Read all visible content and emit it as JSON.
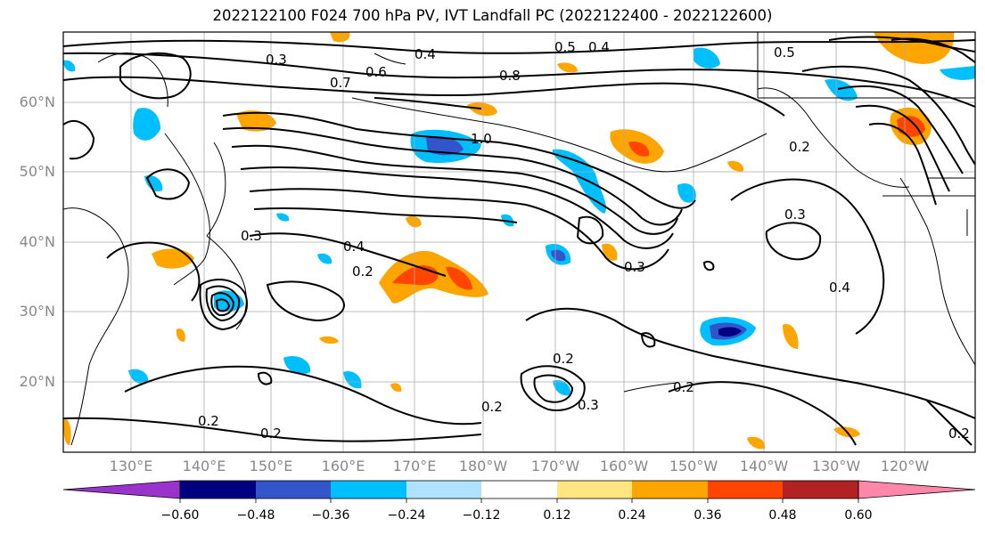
{
  "title": "2022122100 F024 700 hPa PV, IVT Landfall PC (2022122400 - 2022122600)",
  "latitude_labels": [
    "60°N",
    "50°N",
    "40°N",
    "30°N",
    "20°N"
  ],
  "longitude_labels": [
    "130°E",
    "140°E",
    "150°E",
    "160°E",
    "170°E",
    "180°W",
    "170°W",
    "160°W",
    "150°W",
    "140°W",
    "130°W",
    "120°W"
  ],
  "contour_labels": [
    "1.0",
    "0.8",
    "0.7",
    "0.6",
    "0.5",
    "0.5",
    "0.4",
    "0.4",
    "0.4",
    "0.4",
    "0.3",
    "0.3",
    "0.3",
    "0.3",
    "0.3",
    "0.2",
    "0.2",
    "0.2",
    "0.2",
    "0.2",
    "0.2",
    "0.2",
    "0.2"
  ],
  "colorbar": {
    "colors": [
      "#9933cc",
      "#000080",
      "#3355cc",
      "#00bfff",
      "#afe2ff",
      "#ffffff",
      "#ffe680",
      "#ffa500",
      "#ff4500",
      "#b22222",
      "#ff88aa"
    ],
    "tick_labels": [
      "−0.60",
      "−0.48",
      "−0.36",
      "−0.24",
      "−0.12",
      "0.12",
      "0.24",
      "0.36",
      "0.48",
      "0.60"
    ]
  },
  "colors": {
    "grid": "#aaaaaa",
    "contour": "#000000",
    "axis_labels": "#888888"
  }
}
